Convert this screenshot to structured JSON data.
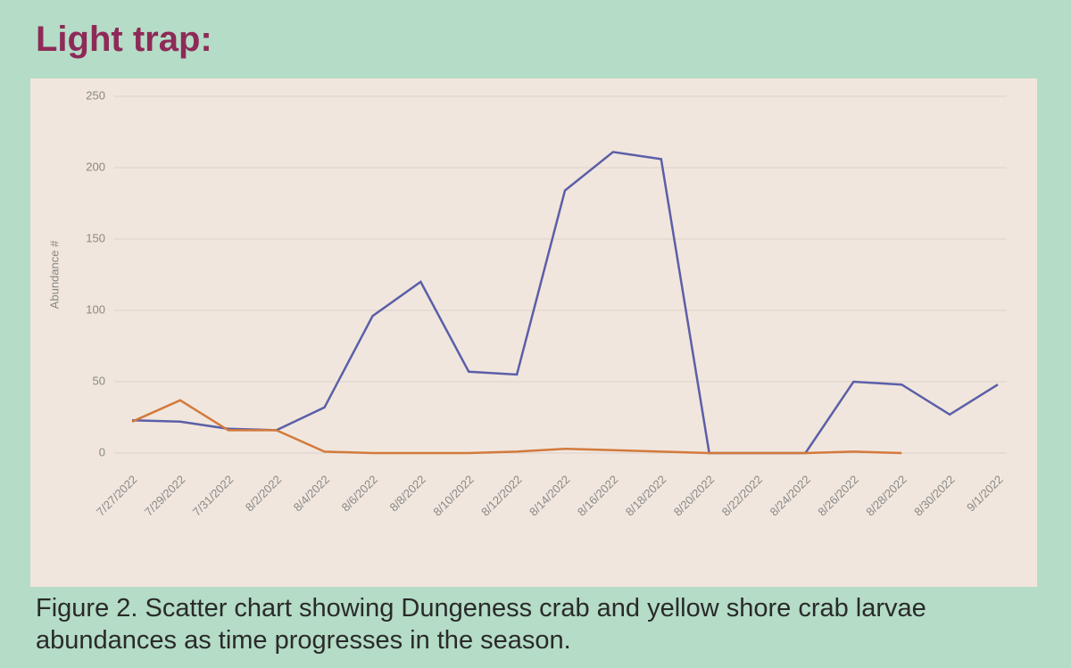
{
  "title": "Light trap:",
  "caption": "Figure 2. Scatter chart showing Dungeness crab and yellow shore crab larvae abundances as time progresses in the season.",
  "chart_data": {
    "type": "line",
    "y_label": "Abundance #",
    "categories": [
      "7/27/2022",
      "7/29/2022",
      "7/31/2022",
      "8/2/2022",
      "8/4/2022",
      "8/6/2022",
      "8/8/2022",
      "8/10/2022",
      "8/12/2022",
      "8/14/2022",
      "8/16/2022",
      "8/18/2022",
      "8/20/2022",
      "8/22/2022",
      "8/24/2022",
      "8/26/2022",
      "8/28/2022",
      "8/30/2022",
      "9/1/2022"
    ],
    "series": [
      {
        "color": "#5b5fa8",
        "values": [
          23,
          22,
          17,
          16,
          32,
          96,
          120,
          57,
          55,
          184,
          211,
          206,
          0,
          0,
          0,
          50,
          48,
          27,
          48
        ]
      },
      {
        "color": "#d27a3c",
        "values": [
          22,
          37,
          16,
          16,
          1,
          0,
          0,
          0,
          1,
          3,
          2,
          1,
          0,
          0,
          0,
          1,
          0,
          null,
          null
        ]
      }
    ],
    "ylim": [
      0,
      250
    ],
    "yticks": [
      0,
      50,
      100,
      150,
      200,
      250
    ],
    "grid": true
  }
}
